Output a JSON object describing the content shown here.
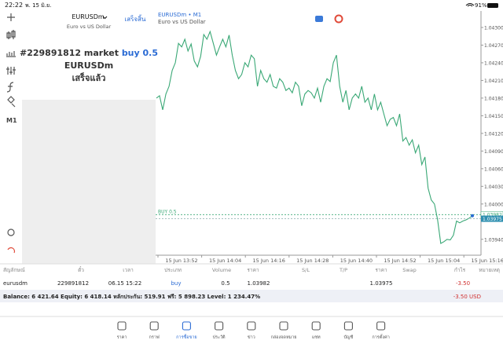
{
  "status_bar": {
    "time": "22:22",
    "date": "พ. 15 มิ.ย.",
    "battery": "91%"
  },
  "toolbar": {
    "timeframe": "M1"
  },
  "order_panel": {
    "symbol": "EURUSDm",
    "description": "Euro vs US Dollar",
    "done_button": "เสร็จสิ้น",
    "order_line_prefix": "#229891812 market",
    "order_line_action": "buy 0.5",
    "order_symbol": "EURUSDm",
    "order_status": "เสร็จแล้ว"
  },
  "chart_data": {
    "type": "line",
    "title": "EURUSDm • M1",
    "subtitle": "Euro vs US Dollar",
    "color": "#3aa876",
    "ylim": [
      1.03913,
      1.04328
    ],
    "yticks": [
      {
        "value": 1.043,
        "label": "1.04300"
      },
      {
        "value": 1.0427,
        "label": "1.04270"
      },
      {
        "value": 1.0424,
        "label": "1.04240"
      },
      {
        "value": 1.0421,
        "label": "1.04210"
      },
      {
        "value": 1.0418,
        "label": "1.04180"
      },
      {
        "value": 1.0415,
        "label": "1.04150"
      },
      {
        "value": 1.0412,
        "label": "1.04120"
      },
      {
        "value": 1.0409,
        "label": "1.04090"
      },
      {
        "value": 1.0406,
        "label": "1.04060"
      },
      {
        "value": 1.0403,
        "label": "1.04030"
      },
      {
        "value": 1.04,
        "label": "1.04000"
      },
      {
        "value": 1.0394,
        "label": "1.03940"
      }
    ],
    "xtick_labels": [
      "15 Jun 13:52",
      "15 Jun 14:04",
      "15 Jun 14:16",
      "15 Jun 14:28",
      "15 Jun 14:40",
      "15 Jun 14:52",
      "15 Jun 15:04",
      "15 Jun 15:16"
    ],
    "buy_line": {
      "name": "BUY 0.5",
      "value": 1.03982,
      "label": "1.03982"
    },
    "bid_line": {
      "value": 1.03975,
      "label": "1.03975"
    },
    "values": [
      1.0418,
      1.04184,
      1.0416,
      1.04187,
      1.042,
      1.04227,
      1.0424,
      1.04273,
      1.04267,
      1.0428,
      1.0426,
      1.04272,
      1.04243,
      1.04233,
      1.04251,
      1.04288,
      1.0428,
      1.04293,
      1.04273,
      1.04253,
      1.04267,
      1.0428,
      1.04267,
      1.04287,
      1.04253,
      1.04227,
      1.04213,
      1.0422,
      1.0424,
      1.04233,
      1.04253,
      1.04247,
      1.042,
      1.04227,
      1.04213,
      1.04207,
      1.0422,
      1.042,
      1.04197,
      1.04213,
      1.04207,
      1.04193,
      1.04197,
      1.04189,
      1.04207,
      1.042,
      1.04167,
      1.04187,
      1.04193,
      1.04189,
      1.0418,
      1.04197,
      1.04173,
      1.042,
      1.04213,
      1.04208,
      1.0424,
      1.04253,
      1.042,
      1.04173,
      1.04193,
      1.0416,
      1.0418,
      1.04187,
      1.0418,
      1.042,
      1.04173,
      1.0418,
      1.0416,
      1.04187,
      1.0416,
      1.04173,
      1.04153,
      1.04133,
      1.04144,
      1.04147,
      1.04133,
      1.04153,
      1.04107,
      1.04113,
      1.041,
      1.04109,
      1.04087,
      1.041,
      1.04067,
      1.0408,
      1.04027,
      1.04007,
      1.04,
      1.03973,
      1.03933,
      1.03936,
      1.0394,
      1.03939,
      1.03947,
      1.03971,
      1.03968,
      1.03971,
      1.03973,
      1.03976,
      1.0398
    ]
  },
  "positions": {
    "headers": [
      "สัญลักษณ์",
      "ตั๋ว",
      "เวลา",
      "ประเภท",
      "Volume",
      "ราคา",
      "S/L",
      "T/P",
      "ราคา",
      "Swap",
      "กำไร",
      "หมายเหตุ"
    ],
    "row": [
      "eurusdm",
      "229891812",
      "06.15 15:22",
      "buy",
      "0.5",
      "1.03982",
      "",
      "",
      "1.03975",
      "",
      "-3.50",
      ""
    ],
    "summary": "Balance: 6 421.64 Equity: 6 418.14 หลักประกัน: 519.91 ฟรี: 5 898.23 Level: 1 234.47%",
    "total": "-3.50 USD"
  },
  "tabs": [
    "ราคา",
    "กราฟ",
    "การซื้อขาย",
    "ประวัติ",
    "ข่าว",
    "กล่องจดหมาย",
    "แชท",
    "บัญชี",
    "การตั้งค่า"
  ]
}
